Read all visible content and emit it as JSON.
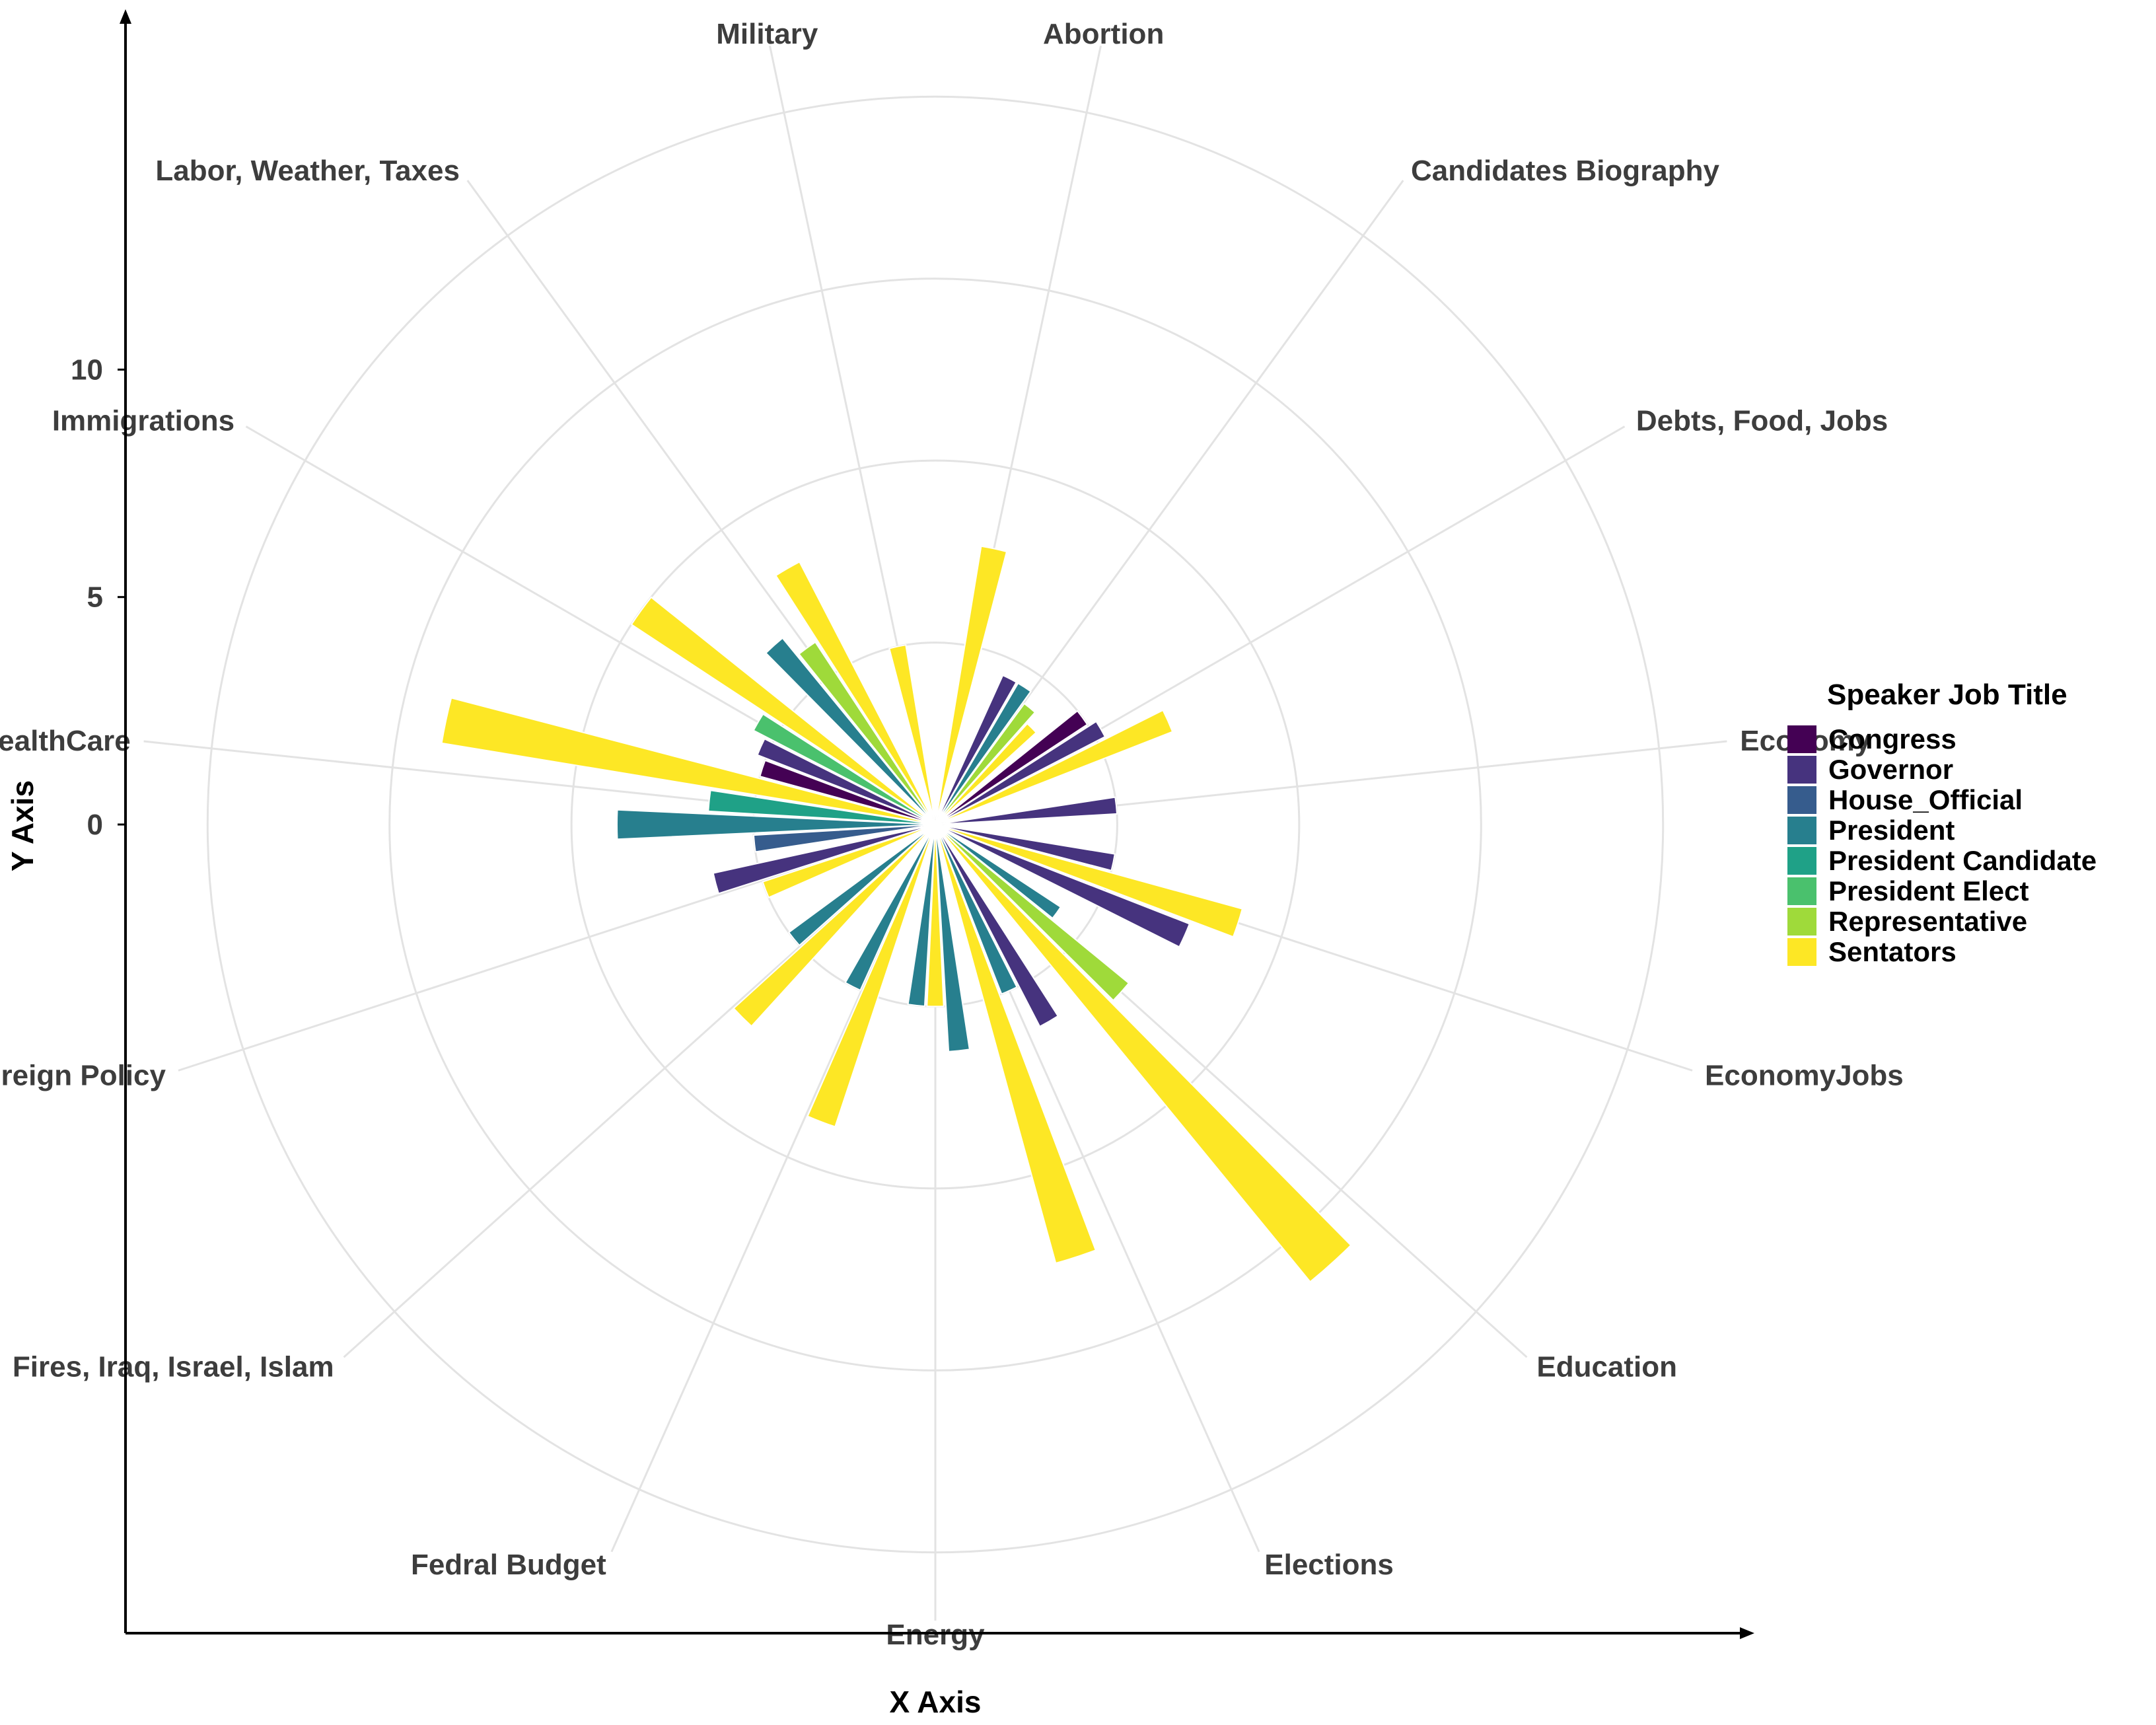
{
  "chart_data": {
    "type": "bar",
    "coord": "polar",
    "xlabel": "X Axis",
    "ylabel": "Y Axis",
    "yticks": [
      0,
      5,
      10
    ],
    "ylim": [
      0,
      17.5
    ],
    "grid": true,
    "legend_position": "right",
    "legend_title": "Speaker Job Title",
    "legend": [
      {
        "name": "Congress",
        "color": "#440154"
      },
      {
        "name": "Governor",
        "color": "#46337E"
      },
      {
        "name": "House_Official",
        "color": "#365C8D"
      },
      {
        "name": "President",
        "color": "#277F8E"
      },
      {
        "name": "President Candidate",
        "color": "#1FA187"
      },
      {
        "name": "President Elect",
        "color": "#4AC16D"
      },
      {
        "name": "Representative",
        "color": "#9FDA3A"
      },
      {
        "name": "Sentators",
        "color": "#FDE725"
      }
    ],
    "categories": [
      "Abortion",
      "Candidates Biography",
      "Debts, Food, Jobs",
      "Economy",
      "EconomyJobs",
      "Education",
      "Elections",
      "Energy",
      "Fedral Budget",
      "Fires, Iraq, Israel, Islam",
      "Foreign Policy",
      "HealthCare",
      "Immigrations",
      "Labor, Weather, Taxes",
      "Military"
    ],
    "bars": [
      {
        "category": "Abortion",
        "series": "Sentators",
        "value": 6.2
      },
      {
        "category": "Candidates Biography",
        "series": "Governor",
        "value": 3.6
      },
      {
        "category": "Candidates Biography",
        "series": "President",
        "value": 3.6
      },
      {
        "category": "Candidates Biography",
        "series": "Representative",
        "value": 3.3
      },
      {
        "category": "Candidates Biography",
        "series": "Sentators",
        "value": 3.0
      },
      {
        "category": "Debts, Food, Jobs",
        "series": "Congress",
        "value": 4.0
      },
      {
        "category": "Debts, Food, Jobs",
        "series": "Governor",
        "value": 4.2
      },
      {
        "category": "Debts, Food, Jobs",
        "series": "Sentators",
        "value": 5.6
      },
      {
        "category": "Economy",
        "series": "Governor",
        "value": 4.0
      },
      {
        "category": "EconomyJobs",
        "series": "Governor",
        "value": 4.0
      },
      {
        "category": "EconomyJobs",
        "series": "Sentators",
        "value": 7.0
      },
      {
        "category": "EconomyJobs",
        "series": "Governor",
        "value": 6.0
      },
      {
        "category": "Education",
        "series": "President",
        "value": 3.3
      },
      {
        "category": "Education",
        "series": "Representative",
        "value": 5.5
      },
      {
        "category": "Education",
        "series": "Sentators",
        "value": 13.0
      },
      {
        "category": "Elections",
        "series": "Governor",
        "value": 5.0
      },
      {
        "category": "Elections",
        "series": "President",
        "value": 4.0
      },
      {
        "category": "Elections",
        "series": "Sentators",
        "value": 10.0
      },
      {
        "category": "Energy",
        "series": "President",
        "value": 5.0
      },
      {
        "category": "Energy",
        "series": "Sentators",
        "value": 4.0
      },
      {
        "category": "Energy",
        "series": "President",
        "value": 4.0
      },
      {
        "category": "Fedral Budget",
        "series": "Sentators",
        "value": 7.0
      },
      {
        "category": "Fedral Budget",
        "series": "President",
        "value": 4.0
      },
      {
        "category": "Fires, Iraq, Israel, Islam",
        "series": "Sentators",
        "value": 6.0
      },
      {
        "category": "Fires, Iraq, Israel, Islam",
        "series": "President",
        "value": 4.0
      },
      {
        "category": "Foreign Policy",
        "series": "Sentators",
        "value": 4.0
      },
      {
        "category": "Foreign Policy",
        "series": "Governor",
        "value": 5.0
      },
      {
        "category": "HealthCare",
        "series": "House_Official",
        "value": 4.0
      },
      {
        "category": "HealthCare",
        "series": "President",
        "value": 7.0
      },
      {
        "category": "HealthCare",
        "series": "President Candidate",
        "value": 5.0
      },
      {
        "category": "HealthCare",
        "series": "Sentators",
        "value": 11.0
      },
      {
        "category": "HealthCare",
        "series": "Congress",
        "value": 4.0
      },
      {
        "category": "Immigrations",
        "series": "Governor",
        "value": 4.2
      },
      {
        "category": "Immigrations",
        "series": "President Elect",
        "value": 4.5
      },
      {
        "category": "Immigrations",
        "series": "Sentators",
        "value": 8.0
      },
      {
        "category": "Labor, Weather, Taxes",
        "series": "President",
        "value": 5.3
      },
      {
        "category": "Labor, Weather, Taxes",
        "series": "Representative",
        "value": 4.8
      },
      {
        "category": "Labor, Weather, Taxes",
        "series": "Sentators",
        "value": 6.5
      },
      {
        "category": "Military",
        "series": "Sentators",
        "value": 4.0
      }
    ]
  }
}
